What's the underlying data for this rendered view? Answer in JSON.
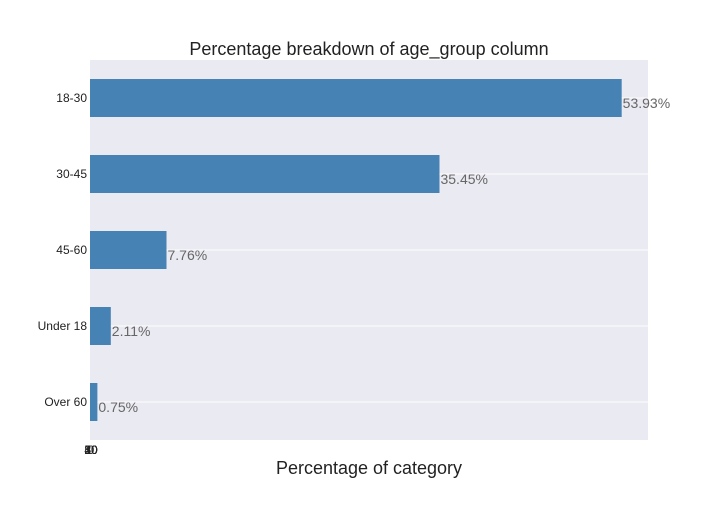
{
  "chart_data": {
    "type": "bar",
    "orientation": "horizontal",
    "title": "Percentage breakdown of age_group column",
    "xlabel": "Percentage of category",
    "ylabel": "",
    "categories": [
      "18-30",
      "30-45",
      "45-60",
      "Under 18",
      "Over 60"
    ],
    "values": [
      53.93,
      35.45,
      7.76,
      2.11,
      0.75
    ],
    "data_labels": [
      "53.93%",
      "35.45%",
      "7.76%",
      "2.11%",
      "0.75%"
    ],
    "x_tick_labels": [
      "0",
      "10",
      "20",
      "30",
      "40",
      "50"
    ],
    "xlim": [
      0,
      56.6
    ],
    "grid": true,
    "legend": "none"
  },
  "colors": {
    "bar": "#4682b4",
    "plot_background": "#eaeaf2",
    "gridline": "#ffffff",
    "data_label": "#666666",
    "text": "#222222"
  }
}
